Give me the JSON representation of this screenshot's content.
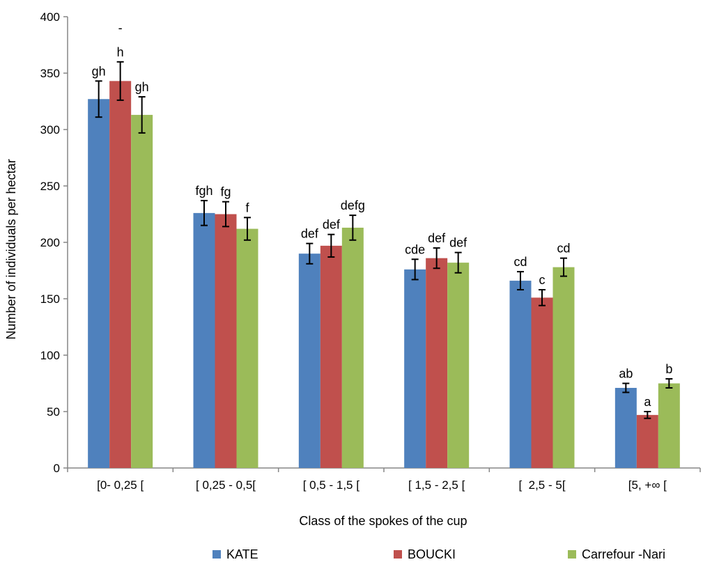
{
  "chart_data": {
    "type": "bar",
    "title": "",
    "xlabel": "Class of the spokes of the cup",
    "ylabel": "Number of individuals per hectar",
    "ylim": [
      0,
      400
    ],
    "yticks": [
      0,
      50,
      100,
      150,
      200,
      250,
      300,
      350,
      400
    ],
    "grid": false,
    "legend_position": "bottom",
    "categories": [
      "[0- 0,25 [",
      "[ 0,25 - 0,5[",
      "[ 0,5 - 1,5 [",
      "[ 1,5 - 2,5 [",
      "[  2,5 - 5[",
      "[5, +∞ ["
    ],
    "series": [
      {
        "name": "KATE",
        "color": "#4F81BD",
        "values": [
          327,
          226,
          190,
          176,
          166,
          71
        ],
        "errors": [
          16,
          11,
          9,
          9,
          8,
          4
        ],
        "letters": [
          "gh",
          "fgh",
          "def",
          "cde",
          "cd",
          "ab"
        ]
      },
      {
        "name": "BOUCKI",
        "color": "#C0504D",
        "values": [
          343,
          225,
          197,
          186,
          151,
          47
        ],
        "errors": [
          17,
          11,
          10,
          9,
          7,
          3
        ],
        "letters": [
          "h",
          "fg",
          "def",
          "def",
          "c",
          "a"
        ]
      },
      {
        "name": "Carrefour -Nari",
        "color": "#9BBB59",
        "values": [
          313,
          212,
          213,
          182,
          178,
          75
        ],
        "errors": [
          16,
          10,
          11,
          9,
          8,
          4
        ],
        "letters": [
          "gh",
          "f",
          "defg",
          "def",
          "cd",
          "b"
        ]
      }
    ],
    "stray_mark": "-"
  }
}
